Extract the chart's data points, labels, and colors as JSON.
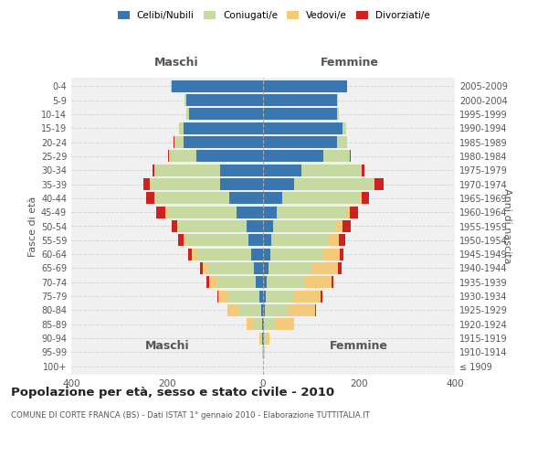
{
  "age_groups": [
    "100+",
    "95-99",
    "90-94",
    "85-89",
    "80-84",
    "75-79",
    "70-74",
    "65-69",
    "60-64",
    "55-59",
    "50-54",
    "45-49",
    "40-44",
    "35-39",
    "30-34",
    "25-29",
    "20-24",
    "15-19",
    "10-14",
    "5-9",
    "0-4"
  ],
  "birth_years": [
    "≤ 1909",
    "1910-1914",
    "1915-1919",
    "1920-1924",
    "1925-1929",
    "1930-1934",
    "1935-1939",
    "1940-1944",
    "1945-1949",
    "1950-1954",
    "1955-1959",
    "1960-1964",
    "1965-1969",
    "1970-1974",
    "1975-1979",
    "1980-1984",
    "1985-1989",
    "1990-1994",
    "1995-1999",
    "2000-2004",
    "2005-2009"
  ],
  "male": {
    "celibi": [
      0,
      0,
      1,
      2,
      4,
      8,
      15,
      20,
      25,
      30,
      35,
      55,
      70,
      90,
      90,
      140,
      165,
      165,
      155,
      160,
      190
    ],
    "coniugati": [
      0,
      1,
      3,
      18,
      45,
      65,
      80,
      95,
      115,
      130,
      140,
      145,
      155,
      145,
      135,
      55,
      20,
      10,
      5,
      3,
      2
    ],
    "vedovi": [
      0,
      1,
      4,
      15,
      25,
      20,
      18,
      10,
      8,
      6,
      4,
      3,
      2,
      2,
      1,
      1,
      0,
      0,
      0,
      0,
      0
    ],
    "divorziati": [
      0,
      0,
      0,
      0,
      1,
      2,
      5,
      6,
      8,
      12,
      12,
      20,
      16,
      12,
      5,
      2,
      1,
      0,
      0,
      0,
      0
    ]
  },
  "female": {
    "nubili": [
      0,
      0,
      1,
      2,
      3,
      5,
      8,
      12,
      15,
      18,
      20,
      28,
      40,
      65,
      80,
      125,
      155,
      165,
      155,
      155,
      175
    ],
    "coniugate": [
      0,
      1,
      4,
      22,
      50,
      60,
      80,
      90,
      110,
      120,
      130,
      145,
      160,
      165,
      125,
      55,
      20,
      8,
      3,
      2,
      1
    ],
    "vedove": [
      0,
      2,
      8,
      40,
      55,
      55,
      55,
      55,
      35,
      20,
      15,
      8,
      5,
      2,
      1,
      1,
      0,
      0,
      0,
      0,
      0
    ],
    "divorziate": [
      0,
      0,
      0,
      1,
      2,
      3,
      4,
      6,
      8,
      14,
      18,
      18,
      16,
      20,
      5,
      2,
      1,
      0,
      0,
      0,
      0
    ]
  },
  "colors": {
    "celibi": "#3a76b0",
    "coniugati": "#c5d9a0",
    "vedovi": "#f5c97a",
    "divorziati": "#cc2222"
  },
  "legend_labels": [
    "Celibi/Nubili",
    "Coniugati/e",
    "Vedovi/e",
    "Divorziati/e"
  ],
  "xlim": 400,
  "title": "Popolazione per età, sesso e stato civile - 2010",
  "subtitle": "COMUNE DI CORTE FRANCA (BS) - Dati ISTAT 1° gennaio 2010 - Elaborazione TUTTITALIA.IT",
  "ylabel_left": "Fasce di età",
  "ylabel_right": "Anni di nascita",
  "xlabel_maschi": "Maschi",
  "xlabel_femmine": "Femmine",
  "bg_color": "#f0f0f0",
  "grid_color": "#cccccc"
}
